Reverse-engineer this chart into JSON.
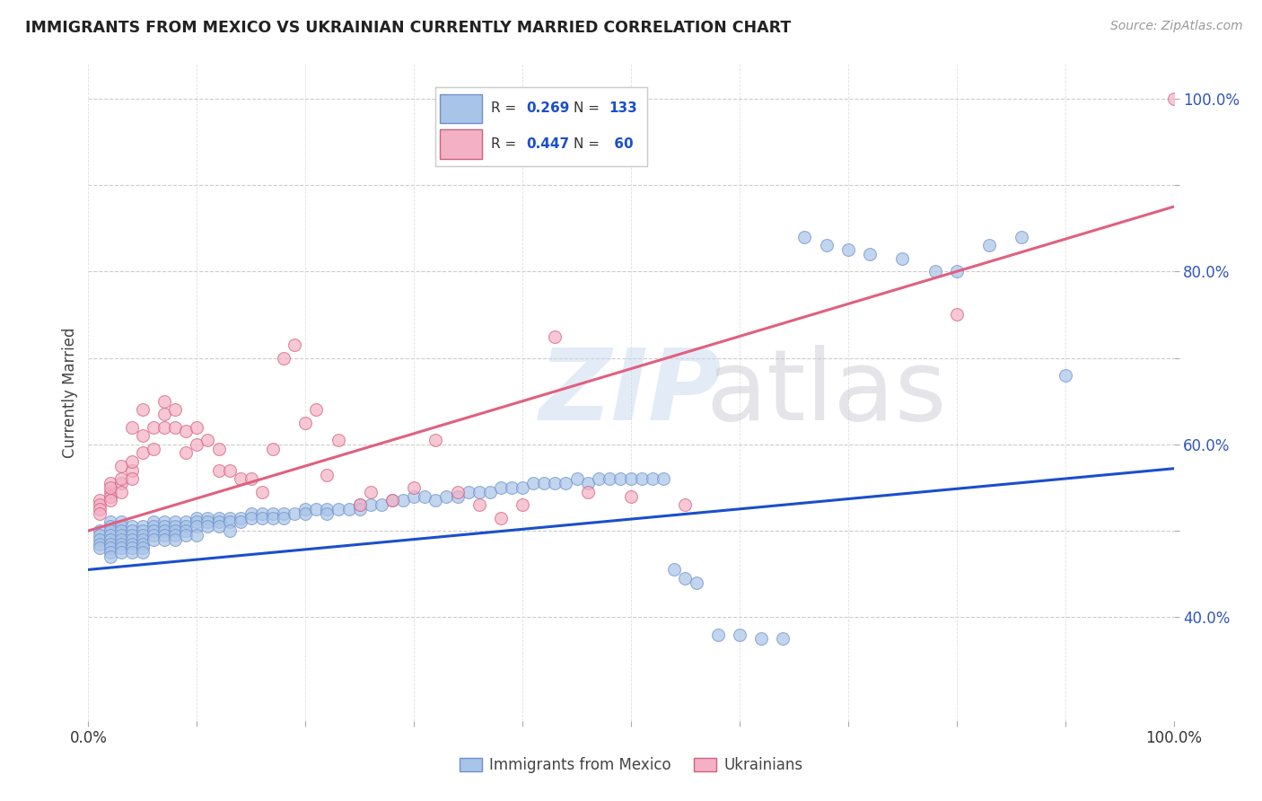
{
  "title": "IMMIGRANTS FROM MEXICO VS UKRAINIAN CURRENTLY MARRIED CORRELATION CHART",
  "source": "Source: ZipAtlas.com",
  "ylabel": "Currently Married",
  "blue_R": 0.269,
  "blue_N": 133,
  "pink_R": 0.447,
  "pink_N": 60,
  "blue_color": "#a8c4e8",
  "pink_color": "#f4b0c4",
  "blue_line_color": "#1a4fcc",
  "pink_line_color": "#e06080",
  "legend_label_blue": "Immigrants from Mexico",
  "legend_label_pink": "Ukrainians",
  "xlim": [
    0.0,
    1.0
  ],
  "ylim": [
    0.28,
    1.04
  ],
  "blue_line_y_start": 0.455,
  "blue_line_y_end": 0.572,
  "pink_line_y_start": 0.5,
  "pink_line_y_end": 0.875,
  "yticks": [
    0.4,
    0.5,
    0.6,
    0.7,
    0.8,
    0.9,
    1.0
  ],
  "ytick_labels": [
    "40.0%",
    "",
    "60.0%",
    "",
    "80.0%",
    "",
    "100.0%"
  ],
  "xticks": [
    0.0,
    0.1,
    0.2,
    0.3,
    0.4,
    0.5,
    0.6,
    0.7,
    0.8,
    0.9,
    1.0
  ],
  "xtick_labels": [
    "0.0%",
    "",
    "",
    "",
    "",
    "",
    "",
    "",
    "",
    "",
    "100.0%"
  ],
  "blue_scatter_x": [
    0.01,
    0.01,
    0.01,
    0.01,
    0.01,
    0.02,
    0.02,
    0.02,
    0.02,
    0.02,
    0.02,
    0.02,
    0.02,
    0.02,
    0.03,
    0.03,
    0.03,
    0.03,
    0.03,
    0.03,
    0.03,
    0.03,
    0.04,
    0.04,
    0.04,
    0.04,
    0.04,
    0.04,
    0.04,
    0.05,
    0.05,
    0.05,
    0.05,
    0.05,
    0.05,
    0.05,
    0.06,
    0.06,
    0.06,
    0.06,
    0.06,
    0.07,
    0.07,
    0.07,
    0.07,
    0.07,
    0.08,
    0.08,
    0.08,
    0.08,
    0.08,
    0.09,
    0.09,
    0.09,
    0.09,
    0.1,
    0.1,
    0.1,
    0.1,
    0.11,
    0.11,
    0.11,
    0.12,
    0.12,
    0.12,
    0.13,
    0.13,
    0.13,
    0.14,
    0.14,
    0.15,
    0.15,
    0.16,
    0.16,
    0.17,
    0.17,
    0.18,
    0.18,
    0.19,
    0.2,
    0.2,
    0.21,
    0.22,
    0.22,
    0.23,
    0.24,
    0.25,
    0.25,
    0.26,
    0.27,
    0.28,
    0.29,
    0.3,
    0.31,
    0.32,
    0.33,
    0.34,
    0.35,
    0.36,
    0.37,
    0.38,
    0.39,
    0.4,
    0.41,
    0.42,
    0.43,
    0.44,
    0.45,
    0.46,
    0.47,
    0.48,
    0.49,
    0.5,
    0.51,
    0.52,
    0.53,
    0.54,
    0.55,
    0.56,
    0.58,
    0.6,
    0.62,
    0.64,
    0.66,
    0.68,
    0.7,
    0.72,
    0.75,
    0.78,
    0.8,
    0.83,
    0.86,
    0.9
  ],
  "blue_scatter_y": [
    0.5,
    0.495,
    0.49,
    0.485,
    0.48,
    0.51,
    0.505,
    0.5,
    0.495,
    0.49,
    0.485,
    0.48,
    0.475,
    0.47,
    0.51,
    0.505,
    0.5,
    0.495,
    0.49,
    0.485,
    0.48,
    0.475,
    0.505,
    0.5,
    0.495,
    0.49,
    0.485,
    0.48,
    0.475,
    0.505,
    0.5,
    0.495,
    0.49,
    0.485,
    0.48,
    0.475,
    0.51,
    0.505,
    0.5,
    0.495,
    0.49,
    0.51,
    0.505,
    0.5,
    0.495,
    0.49,
    0.51,
    0.505,
    0.5,
    0.495,
    0.49,
    0.51,
    0.505,
    0.5,
    0.495,
    0.515,
    0.51,
    0.505,
    0.495,
    0.515,
    0.51,
    0.505,
    0.515,
    0.51,
    0.505,
    0.515,
    0.51,
    0.5,
    0.515,
    0.51,
    0.52,
    0.515,
    0.52,
    0.515,
    0.52,
    0.515,
    0.52,
    0.515,
    0.52,
    0.525,
    0.52,
    0.525,
    0.525,
    0.52,
    0.525,
    0.525,
    0.53,
    0.525,
    0.53,
    0.53,
    0.535,
    0.535,
    0.54,
    0.54,
    0.535,
    0.54,
    0.54,
    0.545,
    0.545,
    0.545,
    0.55,
    0.55,
    0.55,
    0.555,
    0.555,
    0.555,
    0.555,
    0.56,
    0.555,
    0.56,
    0.56,
    0.56,
    0.56,
    0.56,
    0.56,
    0.56,
    0.455,
    0.445,
    0.44,
    0.38,
    0.38,
    0.375,
    0.375,
    0.84,
    0.83,
    0.825,
    0.82,
    0.815,
    0.8,
    0.8,
    0.83,
    0.84,
    0.68
  ],
  "pink_scatter_x": [
    0.01,
    0.01,
    0.01,
    0.01,
    0.02,
    0.02,
    0.02,
    0.02,
    0.02,
    0.03,
    0.03,
    0.03,
    0.03,
    0.04,
    0.04,
    0.04,
    0.04,
    0.05,
    0.05,
    0.05,
    0.06,
    0.06,
    0.07,
    0.07,
    0.07,
    0.08,
    0.08,
    0.09,
    0.09,
    0.1,
    0.1,
    0.11,
    0.12,
    0.12,
    0.13,
    0.14,
    0.15,
    0.16,
    0.17,
    0.18,
    0.19,
    0.2,
    0.21,
    0.22,
    0.23,
    0.25,
    0.26,
    0.28,
    0.3,
    0.32,
    0.34,
    0.36,
    0.38,
    0.4,
    0.43,
    0.46,
    0.5,
    0.55,
    0.8,
    1.0
  ],
  "pink_scatter_y": [
    0.535,
    0.53,
    0.525,
    0.52,
    0.545,
    0.54,
    0.535,
    0.555,
    0.55,
    0.555,
    0.545,
    0.56,
    0.575,
    0.57,
    0.58,
    0.56,
    0.62,
    0.59,
    0.61,
    0.64,
    0.595,
    0.62,
    0.62,
    0.635,
    0.65,
    0.62,
    0.64,
    0.59,
    0.615,
    0.6,
    0.62,
    0.605,
    0.57,
    0.595,
    0.57,
    0.56,
    0.56,
    0.545,
    0.595,
    0.7,
    0.715,
    0.625,
    0.64,
    0.565,
    0.605,
    0.53,
    0.545,
    0.535,
    0.55,
    0.605,
    0.545,
    0.53,
    0.515,
    0.53,
    0.725,
    0.545,
    0.54,
    0.53,
    0.75,
    1.0
  ]
}
